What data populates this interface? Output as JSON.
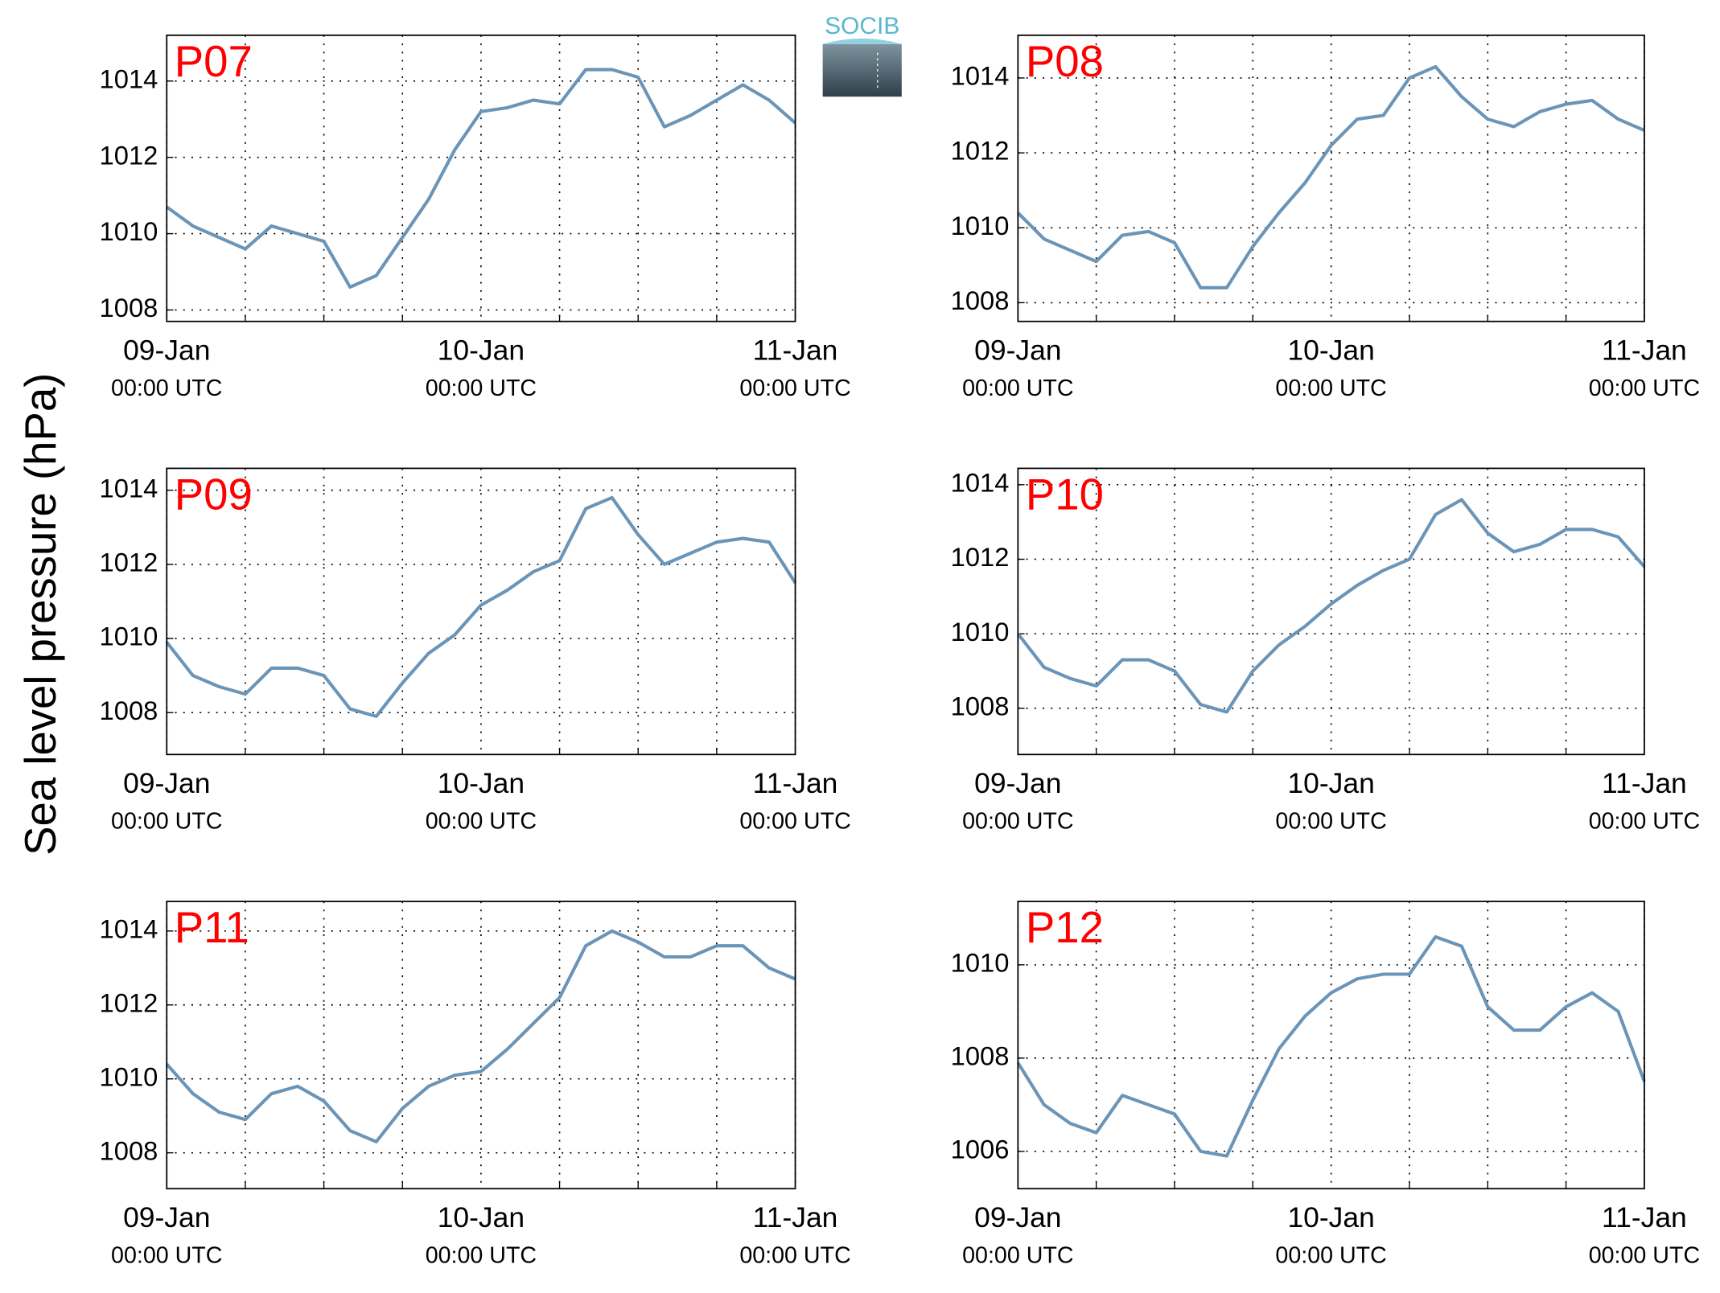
{
  "ylabel": "Sea level pressure (hPa)",
  "logo": "SOCIB",
  "chart_data": [
    {
      "type": "line",
      "title": "P07",
      "xlim": [
        0,
        48
      ],
      "ylim": [
        1007.7,
        1015.2
      ],
      "yticks": [
        1008,
        1010,
        1012,
        1014
      ],
      "xticks": [
        {
          "value": 0,
          "label": [
            "09-Jan",
            "00:00 UTC"
          ]
        },
        {
          "value": 24,
          "label": [
            "10-Jan",
            "00:00 UTC"
          ]
        },
        {
          "value": 48,
          "label": [
            "11-Jan",
            "00:00 UTC"
          ]
        }
      ],
      "xminorticks": [
        6,
        12,
        18,
        30,
        36,
        42
      ],
      "grid": true,
      "color": "#6a95b8",
      "x": [
        0,
        2,
        4,
        6,
        8,
        10,
        12,
        14,
        16,
        18,
        20,
        22,
        24,
        26,
        28,
        30,
        32,
        34,
        36,
        38,
        40,
        42,
        44,
        46,
        48
      ],
      "values": [
        1010.7,
        1010.2,
        1009.9,
        1009.6,
        1010.2,
        1010.0,
        1009.8,
        1008.6,
        1008.9,
        1009.9,
        1010.9,
        1012.2,
        1013.2,
        1013.3,
        1013.5,
        1013.4,
        1014.3,
        1014.3,
        1014.1,
        1012.8,
        1013.1,
        1013.5,
        1013.9,
        1013.5,
        1012.9
      ]
    },
    {
      "type": "line",
      "title": "P08",
      "xlim": [
        0,
        48
      ],
      "ylim": [
        1007.5,
        1015.14
      ],
      "yticks": [
        1008,
        1010,
        1012,
        1014
      ],
      "xticks": [
        {
          "value": 0,
          "label": [
            "09-Jan",
            "00:00 UTC"
          ]
        },
        {
          "value": 24,
          "label": [
            "10-Jan",
            "00:00 UTC"
          ]
        },
        {
          "value": 48,
          "label": [
            "11-Jan",
            "00:00 UTC"
          ]
        }
      ],
      "xminorticks": [
        6,
        12,
        18,
        30,
        36,
        42
      ],
      "grid": true,
      "color": "#6a95b8",
      "x": [
        0,
        2,
        4,
        6,
        8,
        10,
        12,
        14,
        16,
        18,
        20,
        22,
        24,
        26,
        28,
        30,
        32,
        34,
        36,
        38,
        40,
        42,
        44,
        46,
        48
      ],
      "values": [
        1010.4,
        1009.7,
        1009.4,
        1009.1,
        1009.8,
        1009.9,
        1009.6,
        1008.4,
        1008.4,
        1009.5,
        1010.4,
        1011.2,
        1012.2,
        1012.9,
        1013.0,
        1014.0,
        1014.3,
        1013.5,
        1012.9,
        1012.7,
        1013.1,
        1013.3,
        1013.4,
        1012.9,
        1012.6
      ]
    },
    {
      "type": "line",
      "title": "P09",
      "xlim": [
        0,
        48
      ],
      "ylim": [
        1006.87,
        1014.59
      ],
      "yticks": [
        1008,
        1010,
        1012,
        1014
      ],
      "xticks": [
        {
          "value": 0,
          "label": [
            "09-Jan",
            "00:00 UTC"
          ]
        },
        {
          "value": 24,
          "label": [
            "10-Jan",
            "00:00 UTC"
          ]
        },
        {
          "value": 48,
          "label": [
            "11-Jan",
            "00:00 UTC"
          ]
        }
      ],
      "xminorticks": [
        6,
        12,
        18,
        30,
        36,
        42
      ],
      "grid": true,
      "color": "#6a95b8",
      "x": [
        0,
        2,
        4,
        6,
        8,
        10,
        12,
        14,
        16,
        18,
        20,
        22,
        24,
        26,
        28,
        30,
        32,
        34,
        36,
        38,
        40,
        42,
        44,
        46,
        48
      ],
      "values": [
        1009.9,
        1009.0,
        1008.7,
        1008.5,
        1009.2,
        1009.2,
        1009.0,
        1008.1,
        1007.9,
        1008.8,
        1009.6,
        1010.1,
        1010.9,
        1011.3,
        1011.8,
        1012.1,
        1013.5,
        1013.8,
        1012.8,
        1012.0,
        1012.3,
        1012.6,
        1012.7,
        1012.6,
        1011.5
      ]
    },
    {
      "type": "line",
      "title": "P10",
      "xlim": [
        0,
        48
      ],
      "ylim": [
        1006.76,
        1014.44
      ],
      "yticks": [
        1008,
        1010,
        1012,
        1014
      ],
      "xticks": [
        {
          "value": 0,
          "label": [
            "09-Jan",
            "00:00 UTC"
          ]
        },
        {
          "value": 24,
          "label": [
            "10-Jan",
            "00:00 UTC"
          ]
        },
        {
          "value": 48,
          "label": [
            "11-Jan",
            "00:00 UTC"
          ]
        }
      ],
      "xminorticks": [
        6,
        12,
        18,
        30,
        36,
        42
      ],
      "grid": true,
      "color": "#6a95b8",
      "x": [
        0,
        2,
        4,
        6,
        8,
        10,
        12,
        14,
        16,
        18,
        20,
        22,
        24,
        26,
        28,
        30,
        32,
        34,
        36,
        38,
        40,
        42,
        44,
        46,
        48
      ],
      "values": [
        1010.0,
        1009.1,
        1008.8,
        1008.6,
        1009.3,
        1009.3,
        1009.0,
        1008.1,
        1007.9,
        1009.0,
        1009.7,
        1010.2,
        1010.8,
        1011.3,
        1011.7,
        1012.0,
        1013.2,
        1013.6,
        1012.7,
        1012.2,
        1012.4,
        1012.8,
        1012.8,
        1012.6,
        1011.8
      ]
    },
    {
      "type": "line",
      "title": "P11",
      "xlim": [
        0,
        48
      ],
      "ylim": [
        1007.03,
        1014.8
      ],
      "yticks": [
        1008,
        1010,
        1012,
        1014
      ],
      "xticks": [
        {
          "value": 0,
          "label": [
            "09-Jan",
            "00:00 UTC"
          ]
        },
        {
          "value": 24,
          "label": [
            "10-Jan",
            "00:00 UTC"
          ]
        },
        {
          "value": 48,
          "label": [
            "11-Jan",
            "00:00 UTC"
          ]
        }
      ],
      "xminorticks": [
        6,
        12,
        18,
        30,
        36,
        42
      ],
      "grid": true,
      "color": "#6a95b8",
      "x": [
        0,
        2,
        4,
        6,
        8,
        10,
        12,
        14,
        16,
        18,
        20,
        22,
        24,
        26,
        28,
        30,
        32,
        34,
        36,
        38,
        40,
        42,
        44,
        46,
        48
      ],
      "values": [
        1010.4,
        1009.6,
        1009.1,
        1008.9,
        1009.6,
        1009.8,
        1009.4,
        1008.6,
        1008.3,
        1009.2,
        1009.8,
        1010.1,
        1010.2,
        1010.8,
        1011.5,
        1012.2,
        1013.6,
        1014.0,
        1013.7,
        1013.3,
        1013.3,
        1013.6,
        1013.6,
        1013.0,
        1012.7
      ]
    },
    {
      "type": "line",
      "title": "P12",
      "xlim": [
        0,
        48
      ],
      "ylim": [
        1005.2,
        1011.36
      ],
      "yticks": [
        1006,
        1008,
        1010
      ],
      "xticks": [
        {
          "value": 0,
          "label": [
            "09-Jan",
            "00:00 UTC"
          ]
        },
        {
          "value": 24,
          "label": [
            "10-Jan",
            "00:00 UTC"
          ]
        },
        {
          "value": 48,
          "label": [
            "11-Jan",
            "00:00 UTC"
          ]
        }
      ],
      "xminorticks": [
        6,
        12,
        18,
        30,
        36,
        42
      ],
      "grid": true,
      "color": "#6a95b8",
      "x": [
        0,
        2,
        4,
        6,
        8,
        10,
        12,
        14,
        16,
        18,
        20,
        22,
        24,
        26,
        28,
        30,
        32,
        34,
        36,
        38,
        40,
        42,
        44,
        46,
        48
      ],
      "values": [
        1007.9,
        1007.0,
        1006.6,
        1006.4,
        1007.2,
        1007.0,
        1006.8,
        1006.0,
        1005.9,
        1007.1,
        1008.2,
        1008.9,
        1009.4,
        1009.7,
        1009.8,
        1009.8,
        1010.6,
        1010.4,
        1009.1,
        1008.6,
        1008.6,
        1009.1,
        1009.4,
        1009.0,
        1007.5
      ]
    }
  ]
}
